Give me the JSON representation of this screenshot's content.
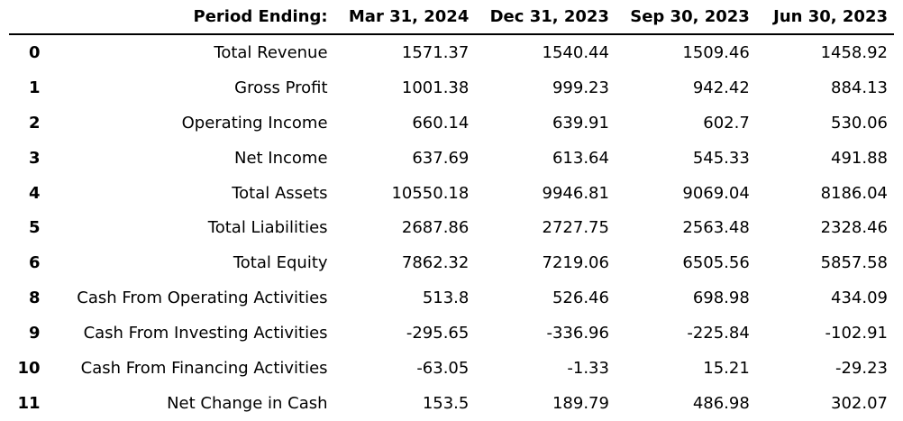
{
  "table": {
    "header": {
      "index": "",
      "label": "Period Ending:",
      "columns": [
        "Mar 31, 2024",
        "Dec 31, 2023",
        "Sep 30, 2023",
        "Jun 30, 2023"
      ]
    },
    "rows": [
      {
        "index": "0",
        "label": "Total Revenue",
        "values": [
          "1571.37",
          "1540.44",
          "1509.46",
          "1458.92"
        ]
      },
      {
        "index": "1",
        "label": "Gross Profit",
        "values": [
          "1001.38",
          "999.23",
          "942.42",
          "884.13"
        ]
      },
      {
        "index": "2",
        "label": "Operating Income",
        "values": [
          "660.14",
          "639.91",
          "602.7",
          "530.06"
        ]
      },
      {
        "index": "3",
        "label": "Net Income",
        "values": [
          "637.69",
          "613.64",
          "545.33",
          "491.88"
        ]
      },
      {
        "index": "4",
        "label": "Total Assets",
        "values": [
          "10550.18",
          "9946.81",
          "9069.04",
          "8186.04"
        ]
      },
      {
        "index": "5",
        "label": "Total Liabilities",
        "values": [
          "2687.86",
          "2727.75",
          "2563.48",
          "2328.46"
        ]
      },
      {
        "index": "6",
        "label": "Total Equity",
        "values": [
          "7862.32",
          "7219.06",
          "6505.56",
          "5857.58"
        ]
      },
      {
        "index": "8",
        "label": "Cash From Operating Activities",
        "values": [
          "513.8",
          "526.46",
          "698.98",
          "434.09"
        ]
      },
      {
        "index": "9",
        "label": "Cash From Investing Activities",
        "values": [
          "-295.65",
          "-336.96",
          "-225.84",
          "-102.91"
        ]
      },
      {
        "index": "10",
        "label": "Cash From Financing Activities",
        "values": [
          "-63.05",
          "-1.33",
          "15.21",
          "-29.23"
        ]
      },
      {
        "index": "11",
        "label": "Net Change in Cash",
        "values": [
          "153.5",
          "189.79",
          "486.98",
          "302.07"
        ]
      }
    ]
  }
}
